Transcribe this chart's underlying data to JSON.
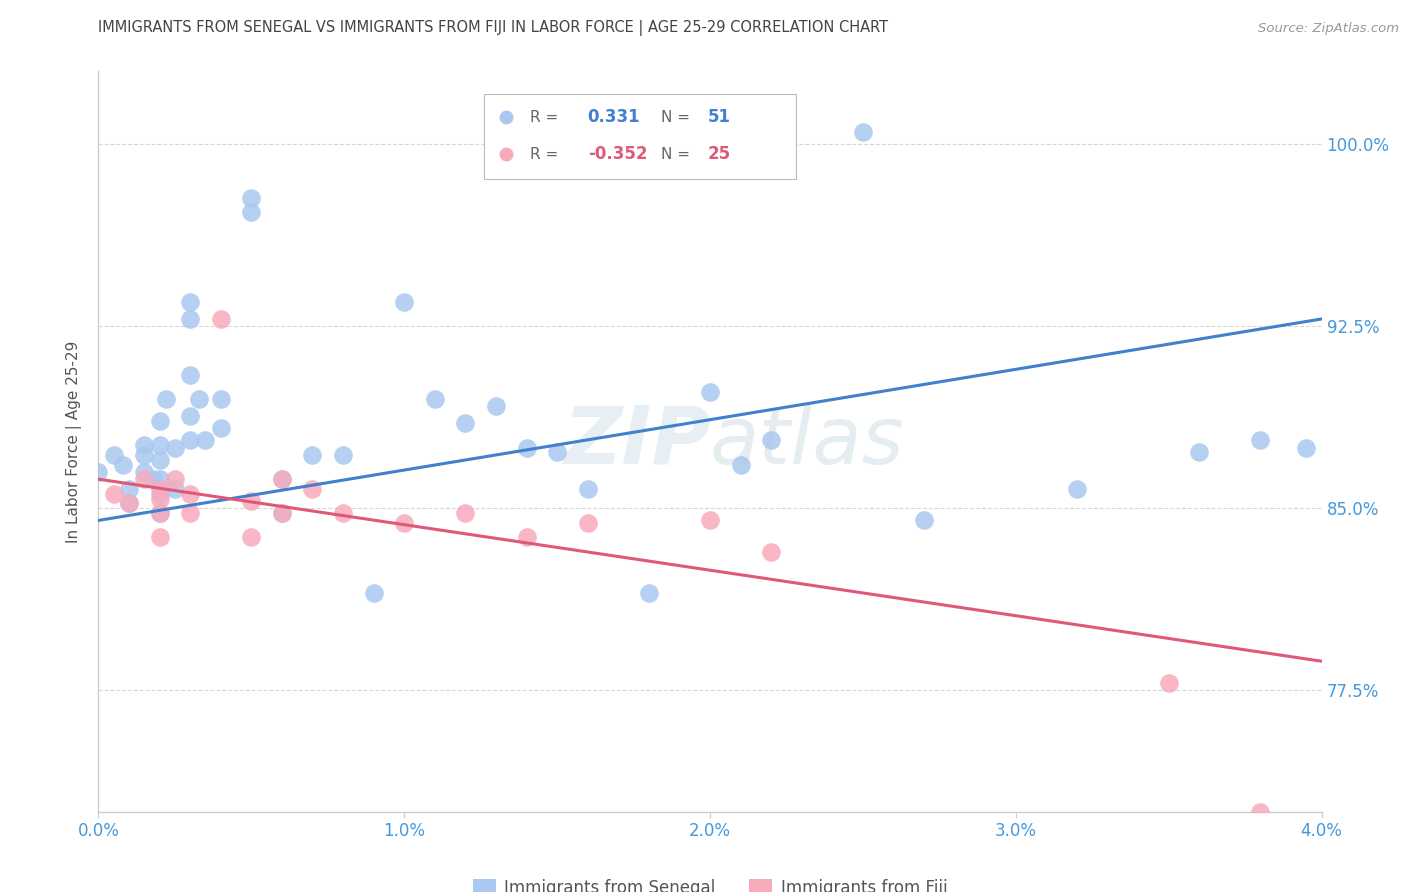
{
  "title": "IMMIGRANTS FROM SENEGAL VS IMMIGRANTS FROM FIJI IN LABOR FORCE | AGE 25-29 CORRELATION CHART",
  "source": "Source: ZipAtlas.com",
  "ylabel": "In Labor Force | Age 25-29",
  "xlim": [
    0.0,
    0.04
  ],
  "ylim": [
    0.725,
    1.03
  ],
  "yticks": [
    0.775,
    0.85,
    0.925,
    1.0
  ],
  "ytick_labels": [
    "77.5%",
    "85.0%",
    "92.5%",
    "100.0%"
  ],
  "xticks": [
    0.0,
    0.01,
    0.02,
    0.03,
    0.04
  ],
  "xtick_labels": [
    "0.0%",
    "1.0%",
    "2.0%",
    "3.0%",
    "4.0%"
  ],
  "background_color": "#ffffff",
  "grid_color": "#d8d8d8",
  "axis_color": "#cccccc",
  "senegal_color": "#aac8f0",
  "senegal_line_color": "#4080cc",
  "fiji_color": "#f8aabb",
  "fiji_line_color": "#e05878",
  "title_color": "#444444",
  "axis_label_color": "#555555",
  "tick_color_right": "#4499dd",
  "watermark": "ZIPatlas",
  "senegal_line_x0": 0.0,
  "senegal_line_y0": 0.845,
  "senegal_line_x1": 0.04,
  "senegal_line_y1": 0.928,
  "fiji_line_x0": 0.0,
  "fiji_line_y0": 0.862,
  "fiji_line_x1": 0.04,
  "fiji_line_y1": 0.787,
  "senegal_x": [
    0.0005,
    0.0008,
    0.001,
    0.001,
    0.0015,
    0.0015,
    0.0015,
    0.0018,
    0.002,
    0.002,
    0.002,
    0.002,
    0.002,
    0.002,
    0.0022,
    0.0025,
    0.0025,
    0.003,
    0.003,
    0.003,
    0.003,
    0.003,
    0.0033,
    0.0035,
    0.004,
    0.004,
    0.005,
    0.005,
    0.006,
    0.006,
    0.007,
    0.008,
    0.009,
    0.01,
    0.011,
    0.012,
    0.013,
    0.014,
    0.015,
    0.016,
    0.018,
    0.02,
    0.021,
    0.022,
    0.025,
    0.027,
    0.032,
    0.036,
    0.038,
    0.0395,
    0.0
  ],
  "senegal_y": [
    0.872,
    0.868,
    0.858,
    0.852,
    0.876,
    0.872,
    0.865,
    0.862,
    0.886,
    0.876,
    0.87,
    0.862,
    0.856,
    0.848,
    0.895,
    0.875,
    0.858,
    0.935,
    0.928,
    0.905,
    0.888,
    0.878,
    0.895,
    0.878,
    0.895,
    0.883,
    0.978,
    0.972,
    0.862,
    0.848,
    0.872,
    0.872,
    0.815,
    0.935,
    0.895,
    0.885,
    0.892,
    0.875,
    0.873,
    0.858,
    0.815,
    0.898,
    0.868,
    0.878,
    1.005,
    0.845,
    0.858,
    0.873,
    0.878,
    0.875,
    0.865
  ],
  "fiji_x": [
    0.0005,
    0.001,
    0.0015,
    0.002,
    0.002,
    0.002,
    0.002,
    0.0025,
    0.003,
    0.003,
    0.004,
    0.005,
    0.005,
    0.006,
    0.006,
    0.007,
    0.008,
    0.01,
    0.012,
    0.014,
    0.016,
    0.02,
    0.022,
    0.035,
    0.038
  ],
  "fiji_y": [
    0.856,
    0.852,
    0.862,
    0.858,
    0.854,
    0.848,
    0.838,
    0.862,
    0.856,
    0.848,
    0.928,
    0.853,
    0.838,
    0.862,
    0.848,
    0.858,
    0.848,
    0.844,
    0.848,
    0.838,
    0.844,
    0.845,
    0.832,
    0.778,
    0.725
  ]
}
